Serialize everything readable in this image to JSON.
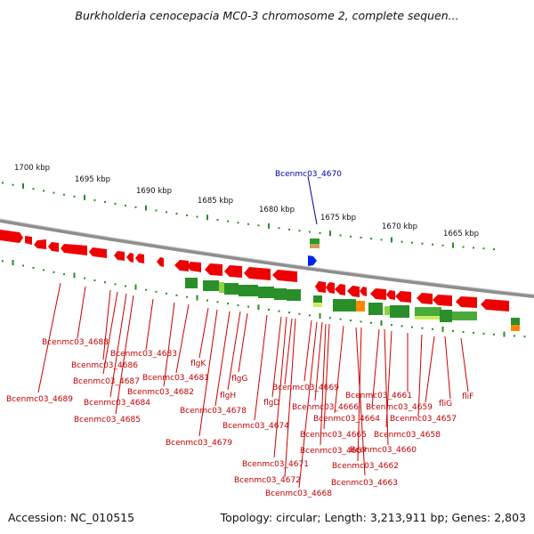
{
  "title": "Burkholderia cenocepacia MC0-3 chromosome 2, complete sequen...",
  "footer": {
    "accession": "Accession: NC_010515",
    "summary": "Topology: circular; Length: 3,213,911 bp; Genes: 2,803"
  },
  "scale_labels": [
    "1700 kbp",
    "1695 kbp",
    "1690 kbp",
    "1685 kbp",
    "1680 kbp",
    "1675 kbp",
    "1670 kbp",
    "1665 kbp"
  ],
  "selected_gene": "Bcenmc03_4670",
  "gene_labels": [
    "Bcenmc03_4688",
    "Bcenmc03_4683",
    "Bcenmc03_4686",
    "flgK",
    "Bcenmc03_4681",
    "Bcenmc03_4687",
    "flgG",
    "Bcenmc03_4682",
    "flgH",
    "Bcenmc03_4689",
    "Bcenmc03_4684",
    "Bcenmc03_4678",
    "Bcenmc03_4685",
    "flgD",
    "Bcenmc03_4674",
    "Bcenmc03_4679",
    "Bcenmc03_4671",
    "Bcenmc03_4672",
    "Bcenmc03_4668",
    "Bcenmc03_4669",
    "Bcenmc03_4661",
    "fliF",
    "Bcenmc03_4666",
    "Bcenmc03_4659",
    "fliG",
    "Bcenmc03_4664",
    "Bcenmc03_4657",
    "Bcenmc03_4665",
    "Bcenmc03_4658",
    "Bcenmc03_4667",
    "Bcenmc03_4660",
    "Bcenmc03_4662",
    "Bcenmc03_4663"
  ],
  "colors": {
    "forward_gene": "#ee0000",
    "reverse_gene": "#1a8a1a",
    "selected_gene": "#0022ee",
    "label": "#c00000",
    "selected_label": "#0000a0",
    "backbone": "#888888",
    "gc_dots": "#2a8a2a"
  }
}
